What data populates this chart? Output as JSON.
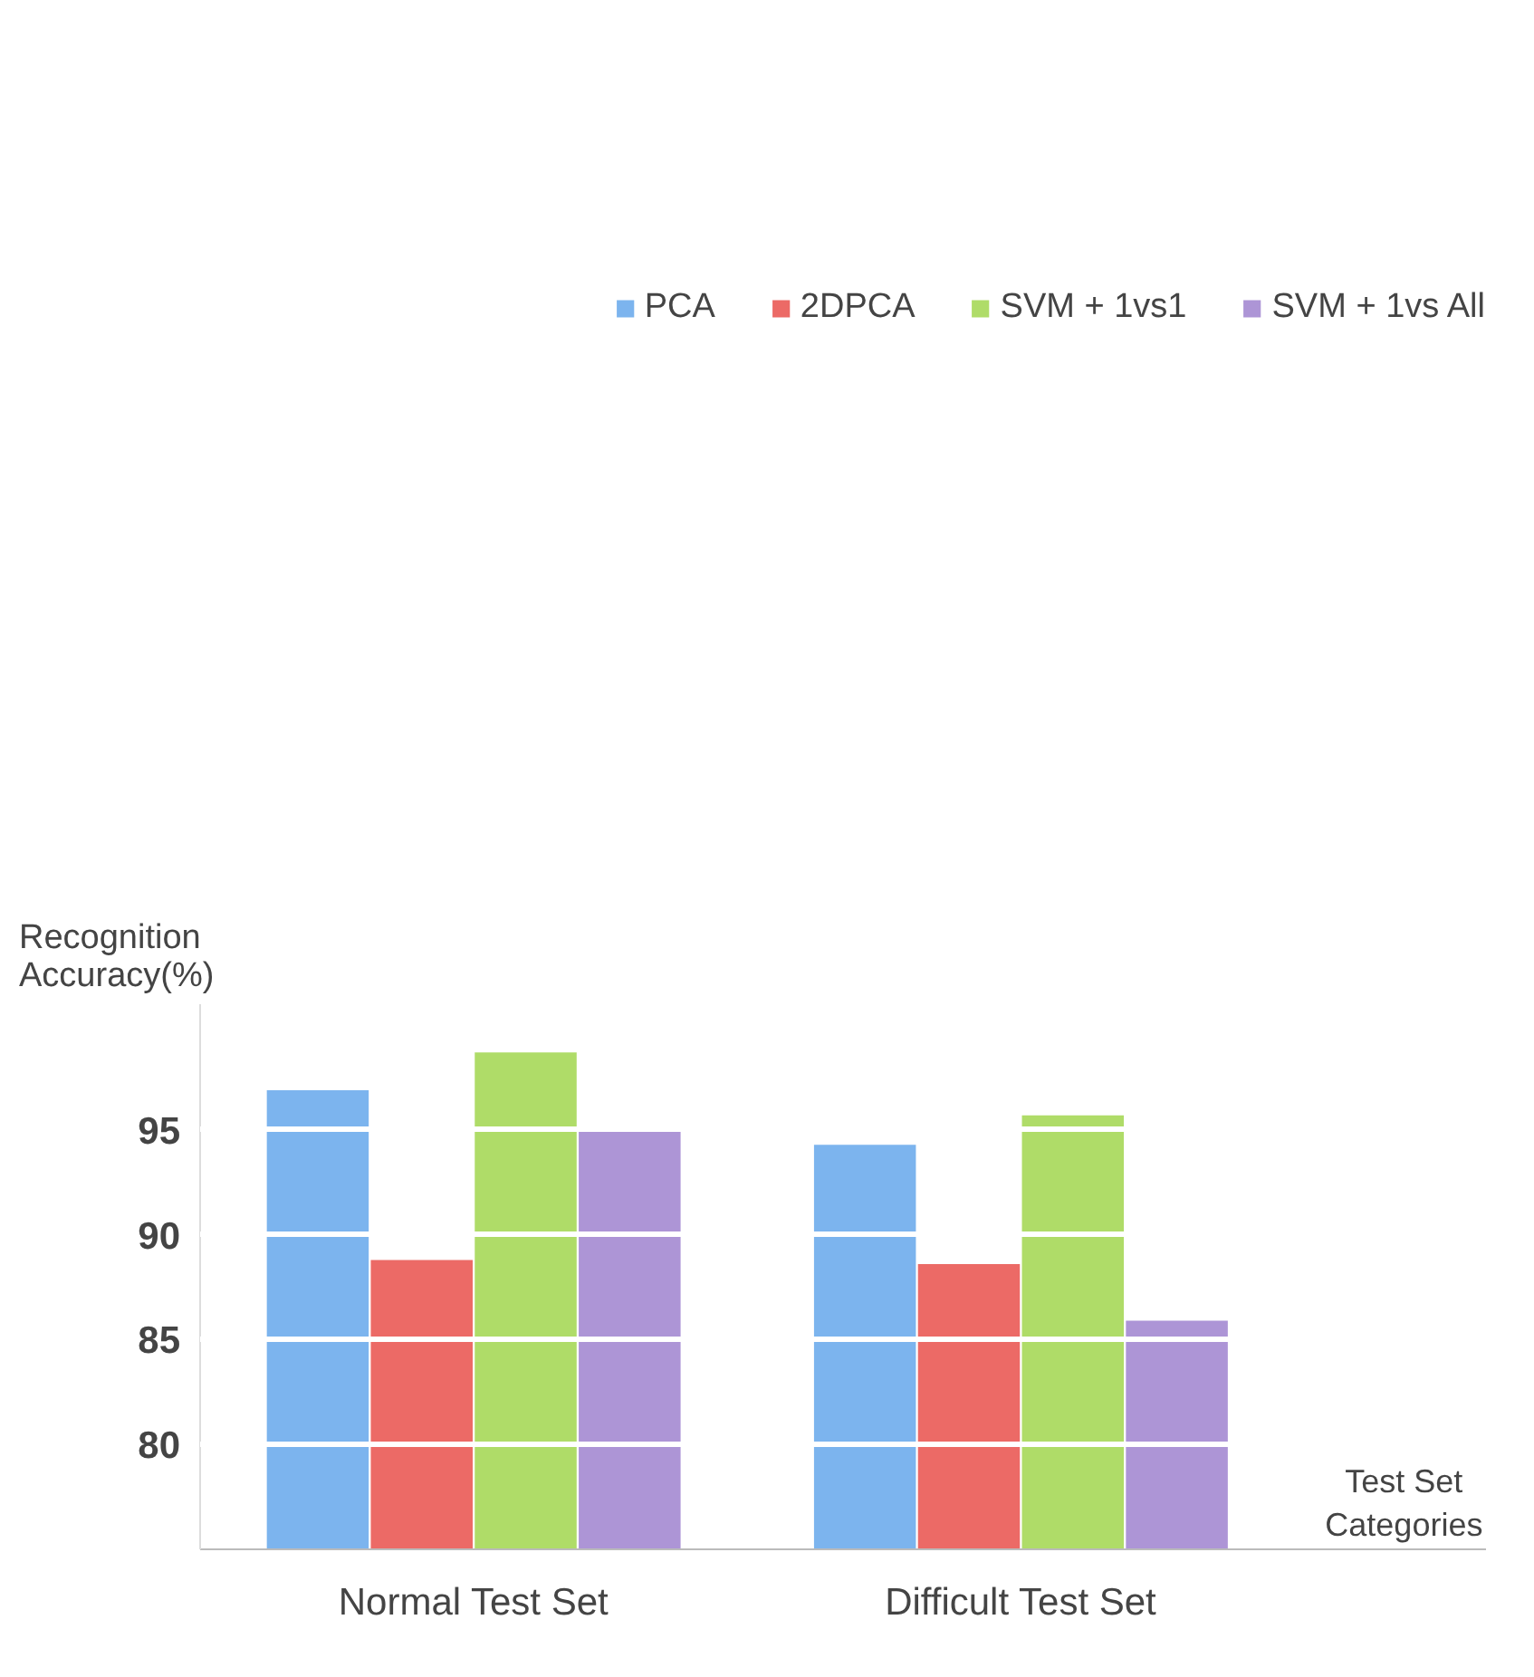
{
  "chart_data": {
    "type": "bar",
    "xlabel": "Test Set Categories",
    "ylabel": "Recognition Accuracy(%)",
    "categories": [
      "Normal Test Set",
      "Difficult Test Set"
    ],
    "series": [
      {
        "name": "PCA",
        "color": "#7cb4ee",
        "values": [
          96.9,
          94.3
        ]
      },
      {
        "name": "2DPCA",
        "color": "#ec6a66",
        "values": [
          88.8,
          88.6
        ]
      },
      {
        "name": "SVM + 1vs1",
        "color": "#afdc68",
        "values": [
          98.7,
          95.7
        ]
      },
      {
        "name": "SVM + 1vs All",
        "color": "#ad95d6",
        "values": [
          95.0,
          85.9
        ]
      }
    ],
    "ylim": [
      75,
      101
    ],
    "yticks": [
      80,
      85,
      90,
      95
    ],
    "grid": "y",
    "legend": "top"
  }
}
